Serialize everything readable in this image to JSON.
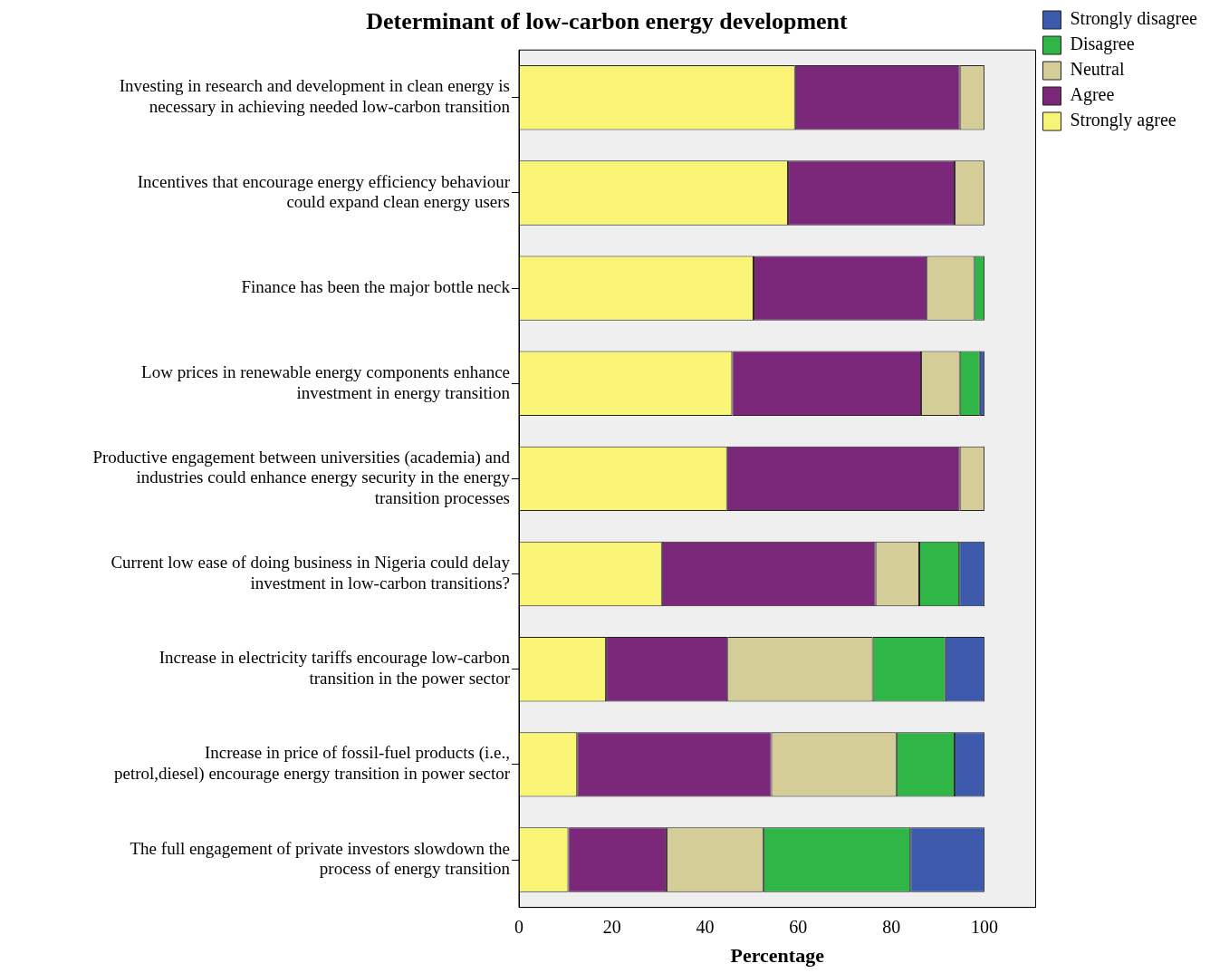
{
  "chart_data": {
    "type": "bar",
    "orientation": "horizontal",
    "stacked": true,
    "title": "Determinant of low-carbon energy development",
    "xlabel": "Percentage",
    "categories": [
      "Investing in research and development in clean energy is necessary in achieving needed low-carbon transition",
      "Incentives that encourage energy efficiency behaviour could expand clean energy users",
      "Finance has been the major bottle neck",
      "Low prices in renewable energy components enhance investment in energy transition",
      "Productive engagement between universities (academia) and industries could enhance energy security in the energy transition processes",
      "Current low ease of doing business in Nigeria could delay investment in low-carbon transitions?",
      "Increase in electricity tariffs encourage low-carbon transition in the power sector",
      "Increase in price of fossil-fuel products (i.e., petrol,diesel) encourage energy transition in power sector",
      "The full engagement of private investors slowdown the process of energy transition"
    ],
    "series": [
      {
        "name": "Strongly agree",
        "color": "#f9f475",
        "values": [
          59.3,
          57.8,
          50.4,
          45.8,
          44.7,
          30.7,
          18.7,
          12.5,
          10.6
        ]
      },
      {
        "name": "Agree",
        "color": "#7b287b",
        "values": [
          35.4,
          35.8,
          37.2,
          40.6,
          50.0,
          45.9,
          26.1,
          41.7,
          21.1
        ]
      },
      {
        "name": "Neutral",
        "color": "#d4cd98",
        "values": [
          5.3,
          6.4,
          10.2,
          8.3,
          5.3,
          9.4,
          31.2,
          26.9,
          20.8
        ]
      },
      {
        "name": "Disagree",
        "color": "#2fb647",
        "values": [
          null,
          null,
          2.2,
          4.3,
          null,
          8.6,
          15.6,
          12.5,
          31.6
        ]
      },
      {
        "name": "Strongly disagree",
        "color": "#3d5aad",
        "values": [
          null,
          null,
          null,
          1.0,
          null,
          5.4,
          8.4,
          6.4,
          15.9
        ]
      }
    ],
    "xlim": [
      0,
      111
    ],
    "xticks": [
      0,
      20,
      40,
      60,
      80,
      100
    ],
    "grid": false,
    "legend": "top right"
  }
}
